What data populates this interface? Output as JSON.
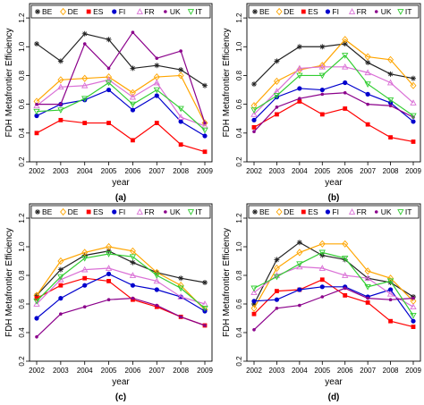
{
  "colors": {
    "BE": "#222222",
    "DE": "#FFA500",
    "ES": "#FF0000",
    "FI": "#0000CD",
    "FR": "#DA70D6",
    "UK": "#8B008B",
    "IT": "#32CD32"
  },
  "chart_data": [
    {
      "type": "line",
      "panel_label": "(a)",
      "xlabel": "year",
      "ylabel": "FDH Metafrontier Efficiency",
      "ylim": [
        0.2,
        1.3
      ],
      "yticks": [
        "0.2",
        "0.4",
        "0.6",
        "0.8",
        "1.0",
        "1.2"
      ],
      "legend_position": "top",
      "x": [
        "2002",
        "2003",
        "2004",
        "2005",
        "2006",
        "2007",
        "2008",
        "2009"
      ],
      "series": [
        {
          "name": "BE",
          "values": [
            1.02,
            0.9,
            1.09,
            1.05,
            0.85,
            0.87,
            0.84,
            0.73
          ]
        },
        {
          "name": "DE",
          "values": [
            0.62,
            0.77,
            0.78,
            0.79,
            0.68,
            0.79,
            0.8,
            0.47
          ]
        },
        {
          "name": "ES",
          "values": [
            0.4,
            0.49,
            0.47,
            0.47,
            0.35,
            0.47,
            0.32,
            0.27
          ]
        },
        {
          "name": "FI",
          "values": [
            0.52,
            0.6,
            0.63,
            0.7,
            0.56,
            0.66,
            0.48,
            0.38
          ]
        },
        {
          "name": "FR",
          "values": [
            0.59,
            0.72,
            0.73,
            0.77,
            0.65,
            0.75,
            0.51,
            0.45
          ]
        },
        {
          "name": "UK",
          "values": [
            0.6,
            0.6,
            1.02,
            0.85,
            1.1,
            0.92,
            0.97,
            0.47
          ]
        },
        {
          "name": "IT",
          "values": [
            0.55,
            0.56,
            0.64,
            0.75,
            0.6,
            0.7,
            0.57,
            0.42
          ]
        }
      ]
    },
    {
      "type": "line",
      "panel_label": "(b)",
      "xlabel": "year",
      "ylabel": "FDH Metafrontier Efficiency",
      "ylim": [
        0.2,
        1.3
      ],
      "yticks": [
        "0.2",
        "0.4",
        "0.6",
        "0.8",
        "1.0",
        "1.2"
      ],
      "legend_position": "top",
      "x": [
        "2002",
        "2003",
        "2004",
        "2005",
        "2006",
        "2007",
        "2008",
        "2009"
      ],
      "series": [
        {
          "name": "BE",
          "values": [
            0.74,
            0.9,
            1.0,
            1.0,
            1.02,
            0.89,
            0.81,
            0.78
          ]
        },
        {
          "name": "DE",
          "values": [
            0.59,
            0.76,
            0.84,
            0.87,
            1.05,
            0.93,
            0.91,
            0.73
          ]
        },
        {
          "name": "ES",
          "values": [
            0.44,
            0.53,
            0.62,
            0.53,
            0.57,
            0.46,
            0.37,
            0.34
          ]
        },
        {
          "name": "FI",
          "values": [
            0.49,
            0.65,
            0.71,
            0.7,
            0.75,
            0.67,
            0.61,
            0.48
          ]
        },
        {
          "name": "FR",
          "values": [
            0.53,
            0.69,
            0.85,
            0.86,
            0.86,
            0.82,
            0.75,
            0.61
          ]
        },
        {
          "name": "UK",
          "values": [
            0.41,
            0.58,
            0.64,
            0.67,
            0.68,
            0.6,
            0.59,
            0.51
          ]
        },
        {
          "name": "IT",
          "values": [
            0.56,
            0.66,
            0.8,
            0.8,
            0.94,
            0.74,
            0.63,
            0.52
          ]
        }
      ]
    },
    {
      "type": "line",
      "panel_label": "(c)",
      "xlabel": "year",
      "ylabel": "FDH Metafrontier Efficiency",
      "ylim": [
        0.2,
        1.3
      ],
      "yticks": [
        "0.2",
        "0.4",
        "0.6",
        "0.8",
        "1.0",
        "1.2"
      ],
      "legend_position": "top",
      "x": [
        "2002",
        "2003",
        "2004",
        "2005",
        "2006",
        "2007",
        "2008",
        "2009"
      ],
      "series": [
        {
          "name": "BE",
          "values": [
            0.66,
            0.84,
            0.94,
            0.97,
            0.89,
            0.82,
            0.78,
            0.75
          ]
        },
        {
          "name": "DE",
          "values": [
            0.66,
            0.9,
            0.96,
            1.0,
            0.97,
            0.82,
            0.73,
            0.56
          ]
        },
        {
          "name": "ES",
          "values": [
            0.64,
            0.73,
            0.78,
            0.76,
            0.63,
            0.58,
            0.51,
            0.45
          ]
        },
        {
          "name": "FI",
          "values": [
            0.5,
            0.64,
            0.73,
            0.81,
            0.73,
            0.7,
            0.65,
            0.55
          ]
        },
        {
          "name": "FR",
          "values": [
            0.6,
            0.77,
            0.84,
            0.85,
            0.8,
            0.76,
            0.65,
            0.6
          ]
        },
        {
          "name": "UK",
          "values": [
            0.37,
            0.53,
            0.58,
            0.63,
            0.64,
            0.59,
            0.51,
            0.45
          ]
        },
        {
          "name": "IT",
          "values": [
            0.62,
            0.79,
            0.92,
            0.95,
            0.93,
            0.8,
            0.71,
            0.57
          ]
        }
      ]
    },
    {
      "type": "line",
      "panel_label": "(d)",
      "xlabel": "year",
      "ylabel": "FDH Metafrontier Efficiency",
      "ylim": [
        0.2,
        1.3
      ],
      "yticks": [
        "0.2",
        "0.4",
        "0.6",
        "0.8",
        "1.0",
        "1.2"
      ],
      "legend_position": "top",
      "x": [
        "2002",
        "2003",
        "2004",
        "2005",
        "2006",
        "2007",
        "2008",
        "2009"
      ],
      "series": [
        {
          "name": "BE",
          "values": [
            0.6,
            0.91,
            1.03,
            0.94,
            0.91,
            0.78,
            0.75,
            0.65
          ]
        },
        {
          "name": "DE",
          "values": [
            0.57,
            0.85,
            0.96,
            1.02,
            1.02,
            0.83,
            0.78,
            0.62
          ]
        },
        {
          "name": "ES",
          "values": [
            0.53,
            0.69,
            0.7,
            0.77,
            0.66,
            0.61,
            0.48,
            0.44
          ]
        },
        {
          "name": "FI",
          "values": [
            0.62,
            0.63,
            0.7,
            0.72,
            0.72,
            0.65,
            0.7,
            0.48
          ]
        },
        {
          "name": "FR",
          "values": [
            0.68,
            0.8,
            0.86,
            0.85,
            0.8,
            0.78,
            0.67,
            0.58
          ]
        },
        {
          "name": "UK",
          "values": [
            0.42,
            0.57,
            0.59,
            0.65,
            0.71,
            0.64,
            0.63,
            0.64
          ]
        },
        {
          "name": "IT",
          "values": [
            0.71,
            0.79,
            0.88,
            0.96,
            0.92,
            0.72,
            0.76,
            0.52
          ]
        }
      ]
    }
  ]
}
